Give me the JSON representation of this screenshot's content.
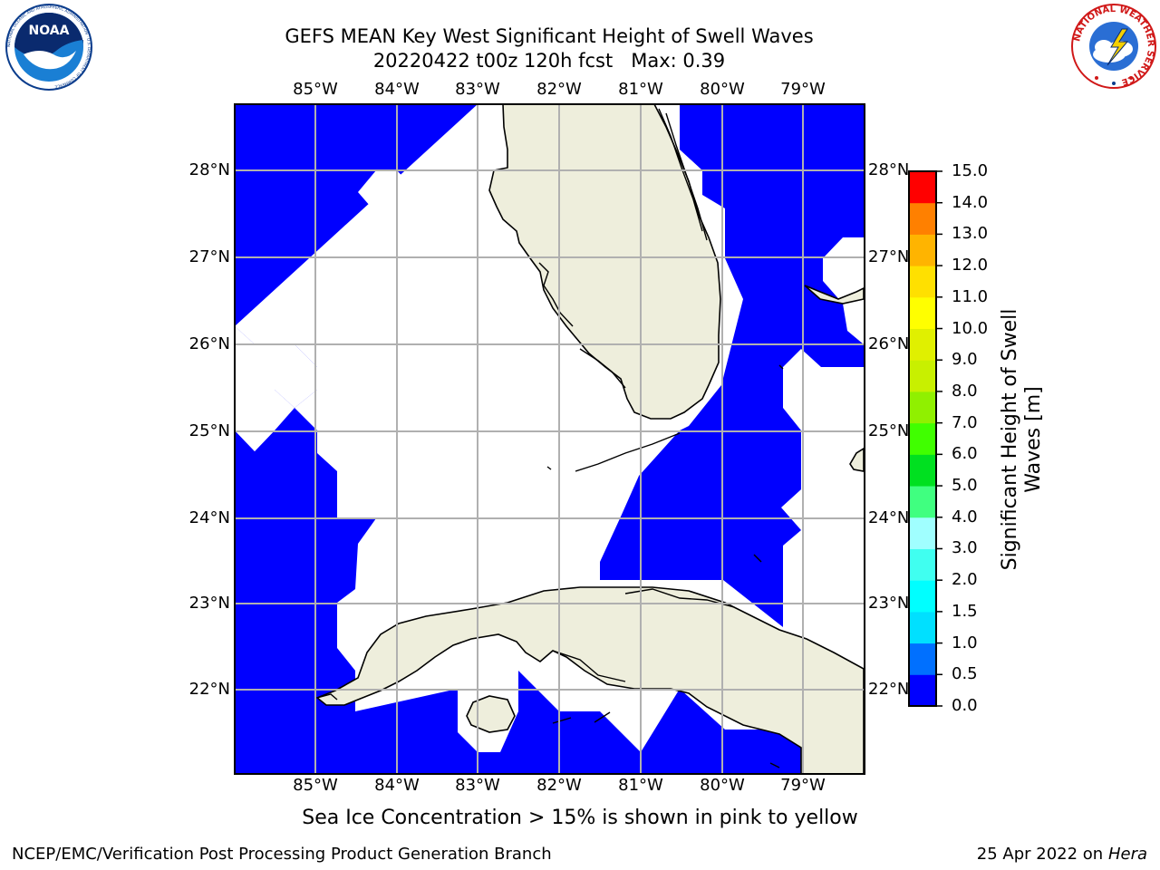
{
  "header": {
    "title_line1": "GEFS MEAN Key West Significant Height of Swell Waves",
    "title_line2": "20220422 t00z 120h fcst   Max: 0.39"
  },
  "logos": {
    "left": "NOAA",
    "left_ring": "NATIONAL OCEANIC AND ATMOSPHERIC ADMINISTRATION · U.S. DEPARTMENT OF COMMERCE",
    "right_ring": "NATIONAL WEATHER SERVICE"
  },
  "map": {
    "lon_labels": [
      "85°W",
      "84°W",
      "83°W",
      "82°W",
      "81°W",
      "80°W",
      "79°W"
    ],
    "lat_labels": [
      "28°N",
      "27°N",
      "26°N",
      "25°N",
      "24°N",
      "23°N",
      "22°N"
    ],
    "fill_color": "#0000ff",
    "land_color": "#eeeedc",
    "no_data_color": "#ffffff"
  },
  "colorbar": {
    "title": "Significant Height of Swell Waves [m]",
    "tick_labels": [
      "0.0",
      "0.5",
      "1.0",
      "1.5",
      "2.0",
      "3.0",
      "4.0",
      "5.0",
      "6.0",
      "7.0",
      "8.0",
      "9.0",
      "10.0",
      "11.0",
      "12.0",
      "13.0",
      "14.0",
      "15.0"
    ],
    "colors": [
      "#0000ff",
      "#0070ff",
      "#00e0ff",
      "#00ffff",
      "#40fff0",
      "#a0ffff",
      "#40ff80",
      "#00e020",
      "#40ff00",
      "#90f000",
      "#c8f000",
      "#e0f000",
      "#ffff00",
      "#ffe000",
      "#ffb400",
      "#ff8000",
      "#ff4000",
      "#ff0000"
    ]
  },
  "notes": {
    "sea_ice": "Sea Ice Concentration > 15% is shown in pink to yellow"
  },
  "footer": {
    "left": "NCEP/EMC/Verification Post Processing Product Generation Branch",
    "date": "25 Apr 2022 on ",
    "machine": "Hera"
  }
}
